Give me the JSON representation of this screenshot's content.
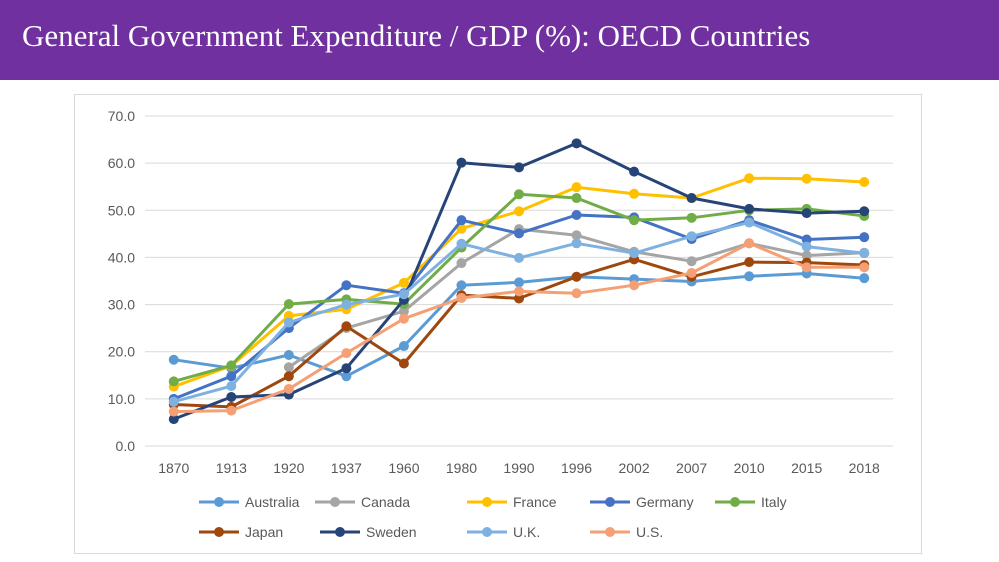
{
  "header": {
    "title": "General Government Expenditure /  GDP (%): OECD Countries"
  },
  "chart_data": {
    "type": "line",
    "title": "",
    "xlabel": "",
    "ylabel": "",
    "ylim": [
      0,
      70
    ],
    "y_ticks": [
      "0.0",
      "10.0",
      "20.0",
      "30.0",
      "40.0",
      "50.0",
      "60.0",
      "70.0"
    ],
    "categories": [
      "1870",
      "1913",
      "1920",
      "1937",
      "1960",
      "1980",
      "1990",
      "1996",
      "2002",
      "2007",
      "2010",
      "2015",
      "2018"
    ],
    "grid": "horizontal",
    "legend_position": "bottom",
    "series": [
      {
        "name": "Australia",
        "color": "#5b9bd5",
        "values": [
          18.3,
          16.5,
          19.3,
          14.8,
          21.2,
          34.1,
          34.7,
          35.9,
          35.4,
          34.9,
          36.0,
          36.6,
          35.6
        ]
      },
      {
        "name": "Canada",
        "color": "#a5a5a5",
        "values": [
          null,
          null,
          16.7,
          25.0,
          28.6,
          38.8,
          46.0,
          44.7,
          41.2,
          39.2,
          43.0,
          40.4,
          41.0
        ]
      },
      {
        "name": "France",
        "color": "#ffc000",
        "values": [
          12.6,
          17.0,
          27.6,
          29.0,
          34.6,
          46.1,
          49.8,
          54.9,
          53.5,
          52.6,
          56.8,
          56.7,
          56.0
        ]
      },
      {
        "name": "Germany",
        "color": "#4472c4",
        "values": [
          10.0,
          14.8,
          25.0,
          34.1,
          32.4,
          47.9,
          45.1,
          49.0,
          48.5,
          43.9,
          47.9,
          43.8,
          44.3
        ]
      },
      {
        "name": "Italy",
        "color": "#70ad47",
        "values": [
          13.7,
          17.1,
          30.1,
          31.1,
          30.1,
          42.1,
          53.4,
          52.6,
          47.9,
          48.4,
          50.0,
          50.3,
          48.8
        ]
      },
      {
        "name": "Japan",
        "color": "#9e480e",
        "values": [
          8.8,
          8.3,
          14.8,
          25.4,
          17.5,
          32.0,
          31.3,
          35.9,
          39.6,
          35.9,
          39.0,
          38.9,
          38.4
        ]
      },
      {
        "name": "Sweden",
        "color": "#264478",
        "values": [
          5.7,
          10.4,
          10.9,
          16.5,
          31.0,
          60.1,
          59.1,
          64.2,
          58.2,
          52.6,
          50.3,
          49.4,
          49.8
        ]
      },
      {
        "name": "U.K.",
        "color": "#7fb1e0",
        "values": [
          9.4,
          12.7,
          26.2,
          30.0,
          32.2,
          42.9,
          39.9,
          43.0,
          40.9,
          44.5,
          47.4,
          42.3,
          40.9
        ]
      },
      {
        "name": "U.S.",
        "color": "#f4a074",
        "values": [
          7.3,
          7.5,
          12.1,
          19.7,
          27.0,
          31.4,
          32.8,
          32.4,
          34.1,
          36.7,
          43.0,
          37.9,
          37.9
        ]
      }
    ]
  }
}
